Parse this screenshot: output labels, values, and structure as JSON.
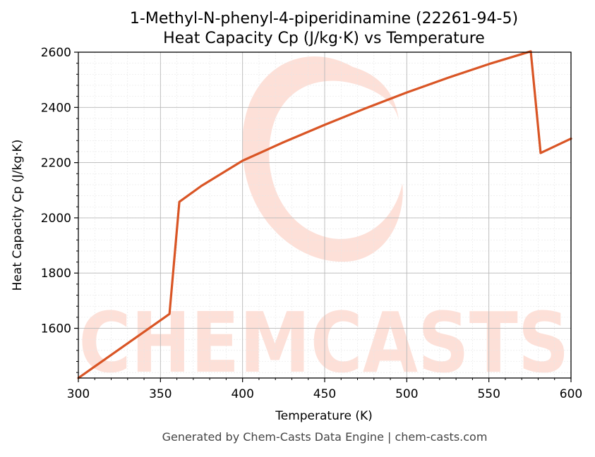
{
  "chart_data": {
    "type": "line",
    "title_line1": "1-Methyl-N-phenyl-4-piperidinamine (22261-94-5)",
    "title_line2": "Heat Capacity Cp (J/kg·K) vs Temperature",
    "xlabel": "Temperature (K)",
    "ylabel": "Heat Capacity Cp (J/kg·K)",
    "xlim": [
      300,
      600
    ],
    "ylim": [
      1420,
      2600
    ],
    "x_ticks": [
      300,
      350,
      400,
      450,
      500,
      550,
      600
    ],
    "y_ticks": [
      1600,
      1800,
      2000,
      2200,
      2400,
      2600
    ],
    "grid": true,
    "line_color": "#d95525",
    "series": [
      {
        "x": [
          300,
          355.5,
          361.5,
          375,
          400,
          425,
          450,
          475,
          500,
          525,
          550,
          575.5,
          581.5,
          600
        ],
        "values": [
          1420,
          1652,
          2058,
          2116,
          2207,
          2274,
          2337,
          2397,
          2454,
          2507,
          2557,
          2603,
          2235,
          2287
        ]
      }
    ]
  },
  "watermark": {
    "text": "CHEMCASTS",
    "color": "#fde0d8"
  },
  "footer": "Generated by Chem-Casts Data Engine | chem-casts.com"
}
